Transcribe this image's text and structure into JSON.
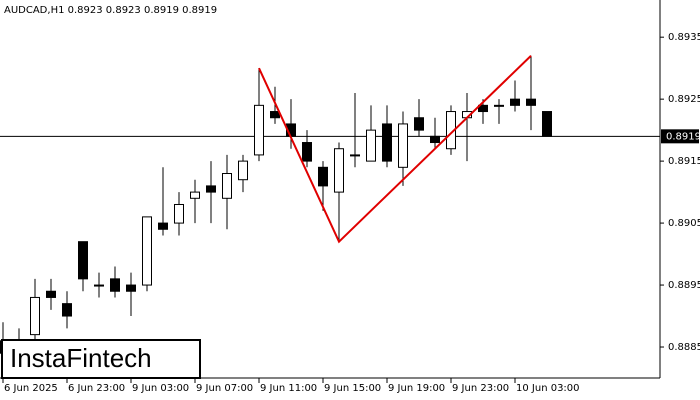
{
  "chart_data": {
    "type": "candlestick",
    "title": "AUDCAD,H1  0.8923 0.8923 0.8919 0.8919",
    "watermark": "InstaFintech",
    "categories": [
      "6 Jun 2025",
      null,
      null,
      null,
      "6 Jun 23:00",
      null,
      null,
      null,
      "9 Jun 03:00",
      null,
      null,
      null,
      "9 Jun 07:00",
      null,
      null,
      null,
      "9 Jun 11:00",
      null,
      null,
      null,
      "9 Jun 15:00",
      null,
      null,
      null,
      "9 Jun 19:00",
      null,
      null,
      null,
      "9 Jun 23:00",
      null,
      null,
      null,
      "10 Jun 03:00",
      null,
      null
    ],
    "open": [
      0.8886,
      0.8884,
      0.8887,
      0.8894,
      0.8892,
      0.8902,
      0.8895,
      0.8896,
      0.8895,
      0.8895,
      0.8905,
      0.8905,
      0.8909,
      0.8911,
      0.8909,
      0.8912,
      0.8916,
      0.8923,
      0.8921,
      0.8918,
      0.8914,
      0.891,
      0.8916,
      0.8915,
      0.8921,
      0.8914,
      0.8922,
      0.8919,
      0.8917,
      0.8922,
      0.8924,
      0.8924,
      0.8925,
      0.8925,
      0.8923
    ],
    "high": [
      0.8889,
      0.8888,
      0.8896,
      0.8896,
      0.8894,
      0.8902,
      0.8897,
      0.8898,
      0.8897,
      0.8906,
      0.8914,
      0.891,
      0.8912,
      0.8915,
      0.8916,
      0.8916,
      0.893,
      0.8927,
      0.8925,
      0.892,
      0.8915,
      0.8918,
      0.8926,
      0.8924,
      0.8924,
      0.8923,
      0.8925,
      0.8922,
      0.8924,
      0.8926,
      0.8925,
      0.8925,
      0.8928,
      0.8932,
      0.8923
    ],
    "low": [
      0.8882,
      0.8882,
      0.8886,
      0.8891,
      0.8888,
      0.8894,
      0.8893,
      0.8893,
      0.889,
      0.8894,
      0.8903,
      0.8903,
      0.8905,
      0.8905,
      0.8904,
      0.891,
      0.8915,
      0.8921,
      0.8917,
      0.8914,
      0.8907,
      0.8902,
      0.8914,
      0.8915,
      0.8914,
      0.8911,
      0.8919,
      0.8917,
      0.8916,
      0.8915,
      0.8921,
      0.8921,
      0.8923,
      0.892,
      0.8919
    ],
    "close": [
      0.8884,
      0.8886,
      0.8893,
      0.8893,
      0.889,
      0.8896,
      0.8895,
      0.8894,
      0.8894,
      0.8906,
      0.8904,
      0.8908,
      0.891,
      0.891,
      0.8913,
      0.8915,
      0.8924,
      0.8922,
      0.8919,
      0.8915,
      0.8911,
      0.8917,
      0.8916,
      0.892,
      0.8915,
      0.8921,
      0.892,
      0.8918,
      0.8923,
      0.8923,
      0.8923,
      0.8924,
      0.8924,
      0.8924,
      0.8919
    ],
    "up_color": "#ffffff",
    "down_color": "#000000",
    "ylim": [
      0.888,
      0.8941
    ],
    "yticks": [
      0.8935,
      0.8925,
      0.8915,
      0.8905,
      0.8895,
      0.8885
    ],
    "last_price": 0.8919,
    "pattern": {
      "color": "#e00000",
      "candles": [
        16,
        21,
        33
      ],
      "values": [
        0.893,
        0.8902,
        0.8932
      ]
    }
  }
}
